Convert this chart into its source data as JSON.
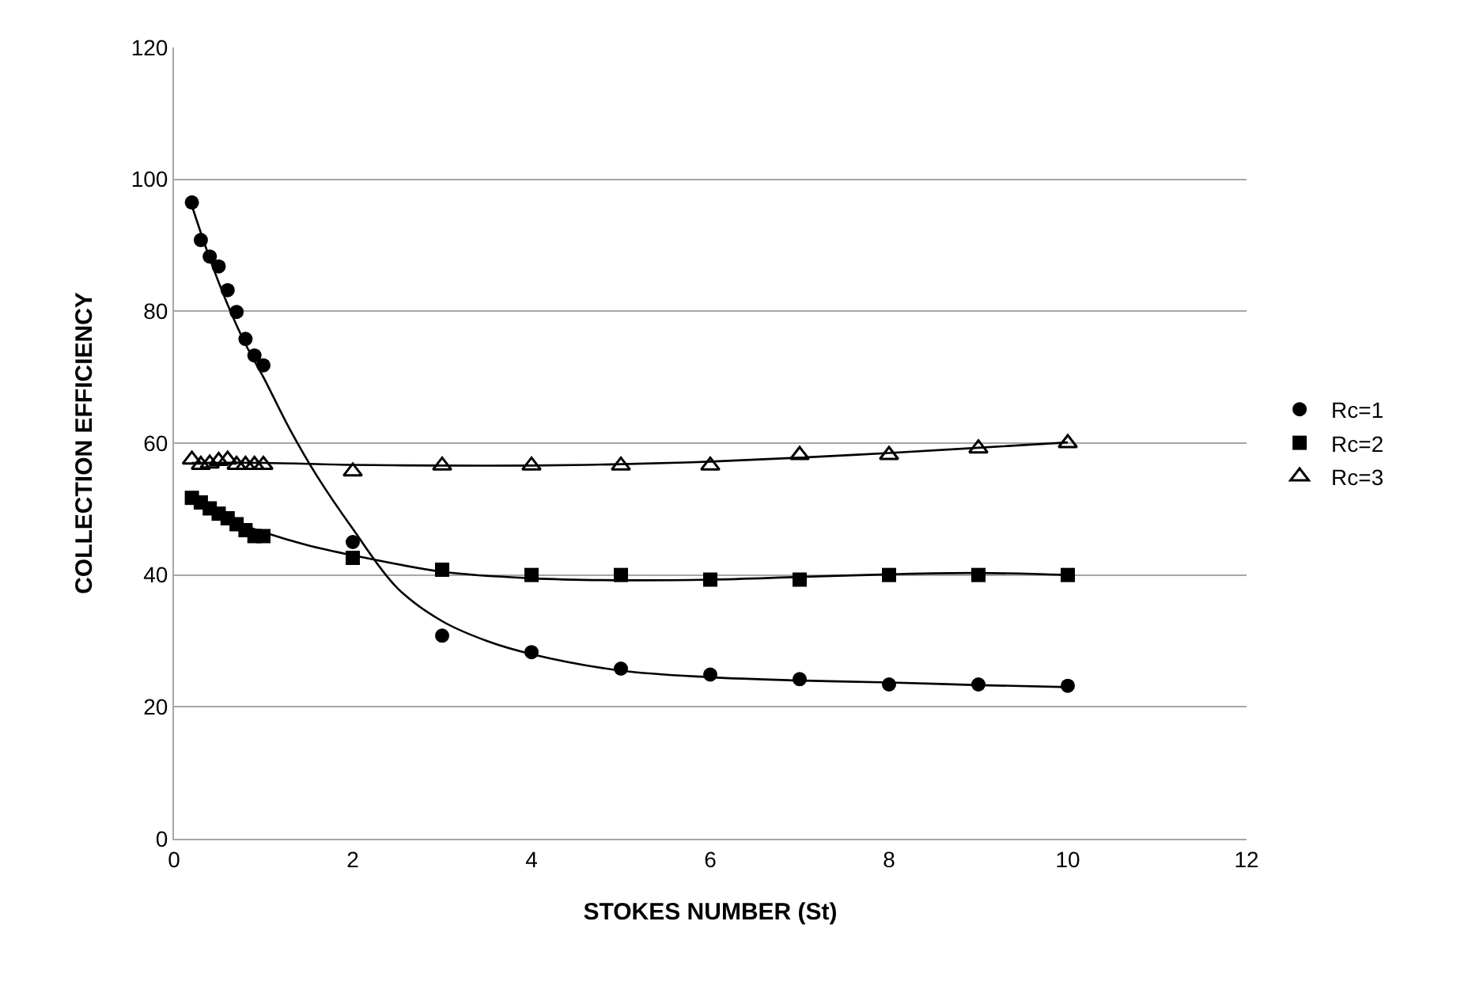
{
  "chart_data": {
    "type": "scatter",
    "xlabel": "STOKES NUMBER (St)",
    "ylabel": "COLLECTION EFFICIENCY",
    "xlim": [
      0,
      12
    ],
    "xticks": [
      0,
      2,
      4,
      6,
      8,
      10,
      12
    ],
    "ylim": [
      0,
      120
    ],
    "yticks": [
      0,
      20,
      40,
      60,
      80,
      100,
      120
    ],
    "grid": "y",
    "legend": "right",
    "x": [
      0.2,
      0.3,
      0.4,
      0.5,
      0.6,
      0.7,
      0.8,
      0.9,
      1,
      2,
      3,
      4,
      5,
      6,
      7,
      8,
      9,
      10
    ],
    "series": [
      {
        "name": "Rc=1",
        "color": "#000000",
        "marker": "circle",
        "values": [
          96.5,
          90.8,
          88.3,
          86.8,
          83.2,
          79.9,
          75.8,
          73.3,
          71.8,
          45,
          30.8,
          28.3,
          25.8,
          24.9,
          24.2,
          23.4,
          23.4,
          23.2
        ]
      },
      {
        "name": "Rc=2",
        "color": "#000000",
        "marker": "square",
        "values": [
          51.7,
          51,
          50.1,
          49.3,
          48.6,
          47.7,
          46.8,
          45.9,
          45.9,
          42.6,
          40.8,
          40,
          40,
          39.3,
          39.3,
          40,
          40,
          40
        ]
      },
      {
        "name": "Rc=3",
        "color": "#000000",
        "marker": "triangle",
        "values": [
          57.5,
          56.7,
          56.9,
          57.3,
          57.5,
          56.7,
          56.7,
          56.7,
          56.7,
          55.7,
          56.6,
          56.6,
          56.6,
          56.6,
          58.2,
          58.2,
          59.2,
          60
        ]
      },
      {
        "type": "line",
        "color": "#000000",
        "marker": "none",
        "x": [
          0.2,
          0.4,
          0.6,
          0.8,
          1,
          1.3,
          1.6,
          2,
          2.5,
          3,
          3.5,
          4,
          5,
          6,
          7,
          8,
          9,
          10
        ],
        "values": [
          96,
          88,
          81,
          75,
          70,
          62,
          55,
          47,
          38,
          33,
          30,
          28,
          25.5,
          24.5,
          24,
          23.7,
          23.3,
          23
        ]
      },
      {
        "type": "line",
        "color": "#000000",
        "marker": "none",
        "x": [
          0.2,
          0.6,
          1,
          1.5,
          2,
          3,
          4,
          5,
          6,
          7,
          8,
          9,
          10
        ],
        "values": [
          51,
          48.5,
          46.5,
          44.5,
          43,
          40.5,
          39.5,
          39.2,
          39.3,
          39.7,
          40.1,
          40.3,
          40
        ]
      },
      {
        "type": "line",
        "color": "#000000",
        "marker": "none",
        "x": [
          0.2,
          1,
          2,
          3,
          4,
          5,
          6,
          7,
          8,
          9,
          10
        ],
        "values": [
          57,
          57,
          56.7,
          56.6,
          56.6,
          56.8,
          57.2,
          57.8,
          58.5,
          59.3,
          60.1
        ]
      }
    ]
  }
}
